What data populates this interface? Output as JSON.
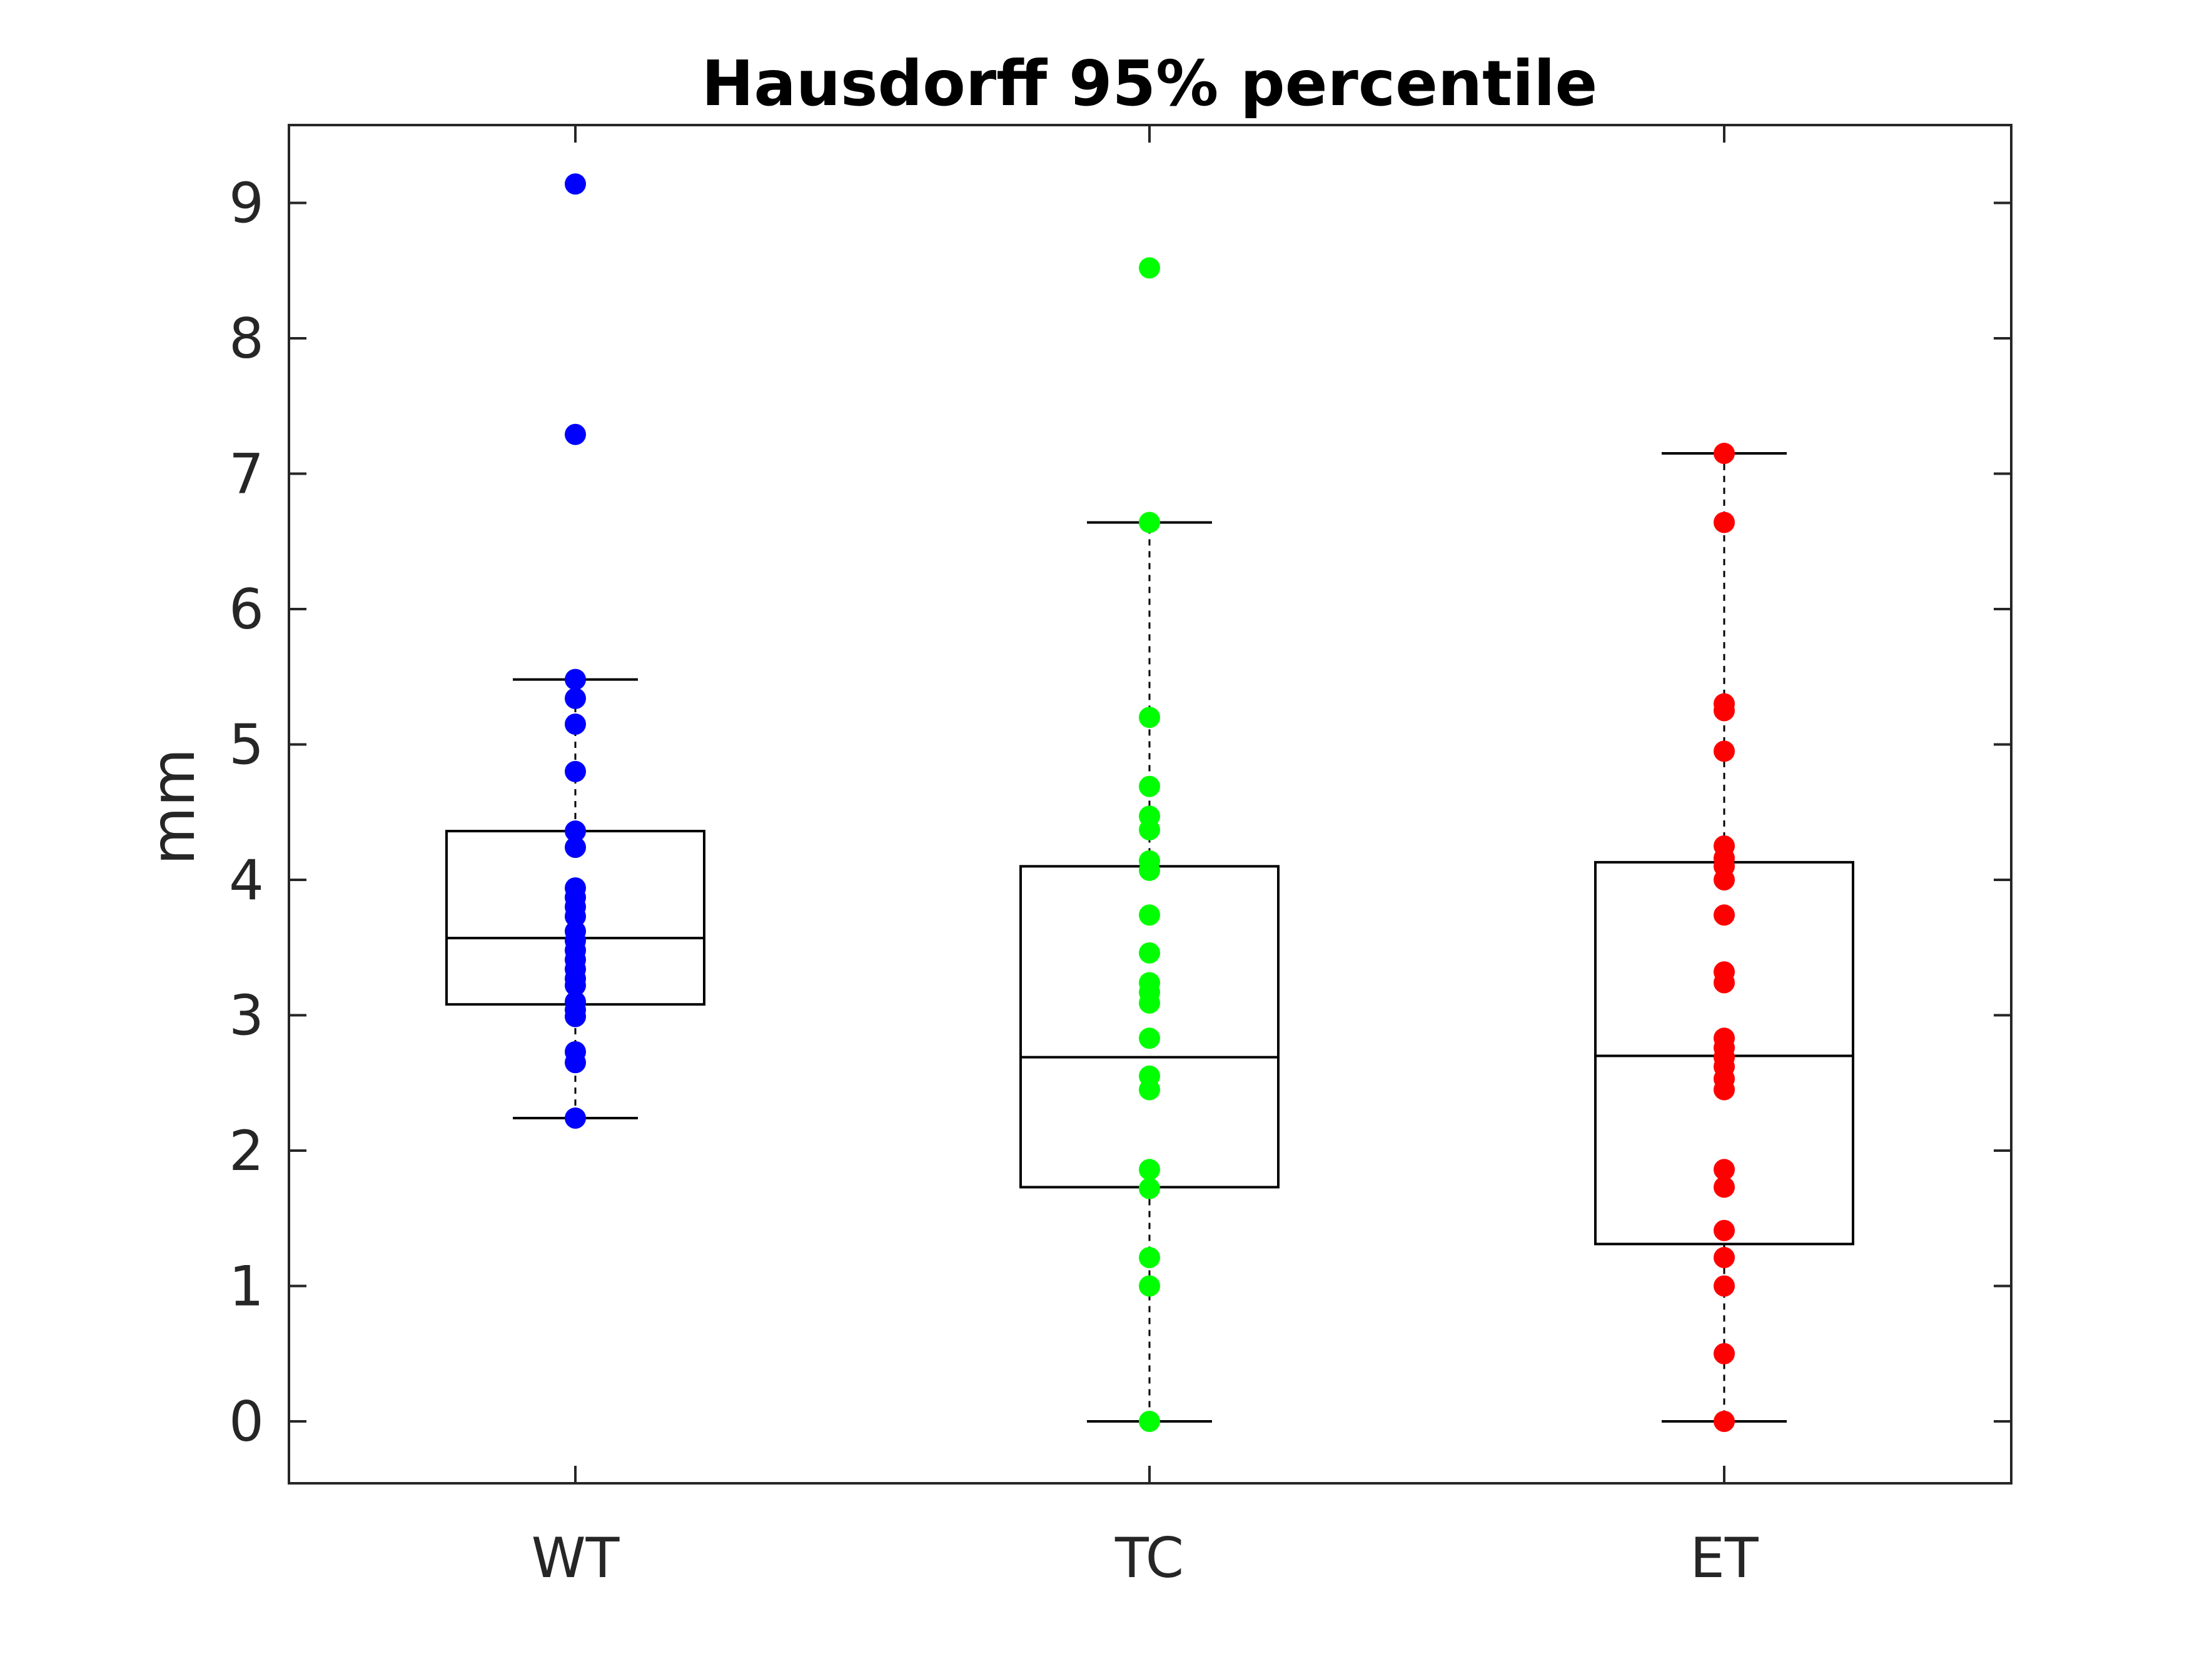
{
  "chart_data": {
    "type": "box",
    "title": "Hausdorff 95% percentile",
    "xlabel": "",
    "ylabel": "mm",
    "ylim": [
      -0.45,
      9.6
    ],
    "yticks": [
      0,
      1,
      2,
      3,
      4,
      5,
      6,
      7,
      8,
      9
    ],
    "categories": [
      "WT",
      "TC",
      "ET"
    ],
    "grid": false,
    "legend": "none",
    "boxes": [
      {
        "category": "WT",
        "whisker_low": 2.24,
        "q1": 3.08,
        "median": 3.57,
        "q3": 4.36,
        "whisker_high": 5.48
      },
      {
        "category": "TC",
        "whisker_low": 0,
        "q1": 1.73,
        "median": 2.69,
        "q3": 4.1,
        "whisker_high": 6.64
      },
      {
        "category": "ET",
        "whisker_low": 0,
        "q1": 1.31,
        "median": 2.7,
        "q3": 4.13,
        "whisker_high": 7.15
      }
    ],
    "series": [
      {
        "category": "WT",
        "color": "#0000ff",
        "values": [
          9.14,
          7.29,
          5.48,
          5.34,
          5.15,
          4.8,
          4.36,
          4.24,
          3.94,
          3.87,
          3.8,
          3.73,
          3.62,
          3.55,
          3.48,
          3.41,
          3.34,
          3.27,
          3.22,
          3.1,
          3.04,
          2.99,
          2.73,
          2.65,
          2.24
        ]
      },
      {
        "category": "TC",
        "color": "#00ff00",
        "values": [
          8.52,
          6.64,
          5.2,
          4.69,
          4.47,
          4.37,
          4.14,
          4.07,
          3.74,
          3.46,
          3.24,
          3.17,
          3.09,
          2.83,
          2.55,
          2.45,
          1.86,
          1.72,
          1.21,
          1.0,
          0
        ]
      },
      {
        "category": "ET",
        "color": "#ff0000",
        "values": [
          7.15,
          6.64,
          5.3,
          5.25,
          4.95,
          4.25,
          4.16,
          4.1,
          4.0,
          3.74,
          3.32,
          3.24,
          2.83,
          2.76,
          2.69,
          2.62,
          2.53,
          2.45,
          1.86,
          1.73,
          1.41,
          1.21,
          1.0,
          0.5,
          0
        ]
      }
    ]
  }
}
